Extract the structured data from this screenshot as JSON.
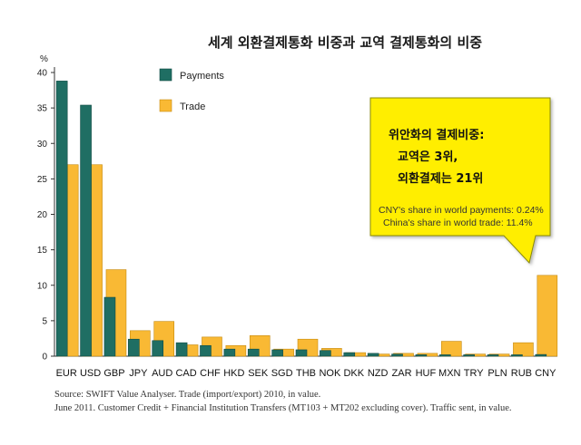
{
  "title": "세계 외환결제통화 비중과 교역 결제통화의 비중",
  "chart_data": {
    "type": "bar",
    "ylabel": "%",
    "ylim": [
      0,
      40
    ],
    "yticks": [
      "0",
      "5",
      "10",
      "15",
      "20",
      "25",
      "30",
      "35",
      "40"
    ],
    "categories": [
      "EUR",
      "USD",
      "GBP",
      "JPY",
      "AUD",
      "CAD",
      "CHF",
      "HKD",
      "SEK",
      "SGD",
      "THB",
      "NOK",
      "DKK",
      "NZD",
      "ZAR",
      "HUF",
      "MXN",
      "TRY",
      "PLN",
      "RUB",
      "CNY"
    ],
    "series": [
      {
        "name": "Payments",
        "color": "#1f6e63",
        "values": [
          38.8,
          35.4,
          8.3,
          2.4,
          2.2,
          1.9,
          1.5,
          1.0,
          1.0,
          0.9,
          0.9,
          0.8,
          0.5,
          0.4,
          0.3,
          0.2,
          0.2,
          0.2,
          0.2,
          0.2,
          0.24
        ]
      },
      {
        "name": "Trade",
        "color": "#f9b934",
        "values": [
          27.0,
          27.0,
          12.2,
          3.6,
          4.9,
          1.6,
          2.7,
          1.5,
          2.9,
          1.0,
          2.4,
          1.1,
          0.5,
          0.3,
          0.4,
          0.4,
          2.1,
          0.3,
          0.3,
          1.9,
          11.4
        ]
      }
    ],
    "legend_position": "top-left",
    "grid": false
  },
  "callout": {
    "heading": "위안화의 결제비중:",
    "line1": "교역은 3위,",
    "line2": "외환결제는 21위",
    "note1": "CNY's share in world payments: 0.24%",
    "note2": "China's share in world trade: 11.4%",
    "fill": "#ffee00",
    "stroke": "#8a8a00"
  },
  "source": {
    "line1": "Source: SWIFT Value Analyser. Trade (import/export) 2010, in value.",
    "line2": "June 2011. Customer Credit + Financial Institution Transfers (MT103 + MT202 excluding cover). Traffic sent, in value."
  }
}
